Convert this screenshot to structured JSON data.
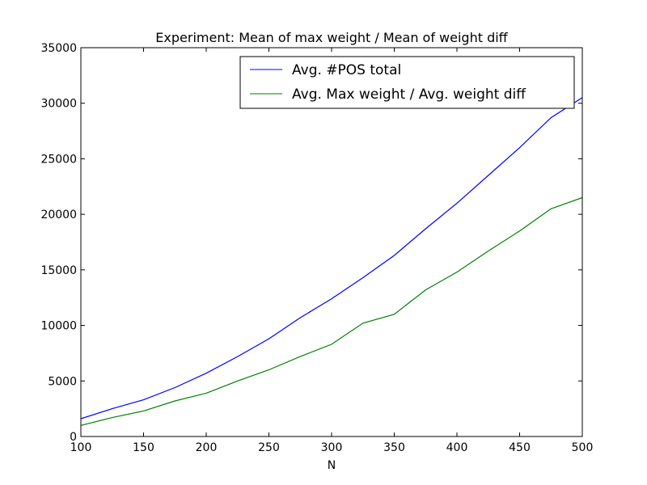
{
  "chart_data": {
    "type": "line",
    "title": "Experiment: Mean of max weight / Mean of weight diff",
    "xlabel": "N",
    "ylabel": "",
    "xlim": [
      100,
      500
    ],
    "ylim": [
      0,
      35000
    ],
    "xticks": [
      100,
      150,
      200,
      250,
      300,
      350,
      400,
      450,
      500
    ],
    "yticks": [
      0,
      5000,
      10000,
      15000,
      20000,
      25000,
      30000,
      35000
    ],
    "grid": false,
    "legend_position": "top-right",
    "series": [
      {
        "name": "Avg. #POS total",
        "color": "#0000ff",
        "x": [
          100,
          125,
          150,
          175,
          200,
          225,
          250,
          275,
          300,
          325,
          350,
          375,
          400,
          425,
          450,
          475,
          500
        ],
        "y": [
          1600,
          2500,
          3300,
          4400,
          5700,
          7200,
          8800,
          10700,
          12400,
          14300,
          16300,
          18700,
          21000,
          23500,
          26000,
          28700,
          30500
        ]
      },
      {
        "name": "Avg. Max weight / Avg. weight diff",
        "color": "#008000",
        "x": [
          100,
          125,
          150,
          175,
          200,
          225,
          250,
          275,
          300,
          325,
          350,
          375,
          400,
          425,
          450,
          475,
          500
        ],
        "y": [
          1000,
          1700,
          2300,
          3200,
          3900,
          5000,
          6000,
          7200,
          8300,
          10200,
          11000,
          13200,
          14800,
          16700,
          18500,
          20500,
          21500
        ]
      }
    ]
  }
}
